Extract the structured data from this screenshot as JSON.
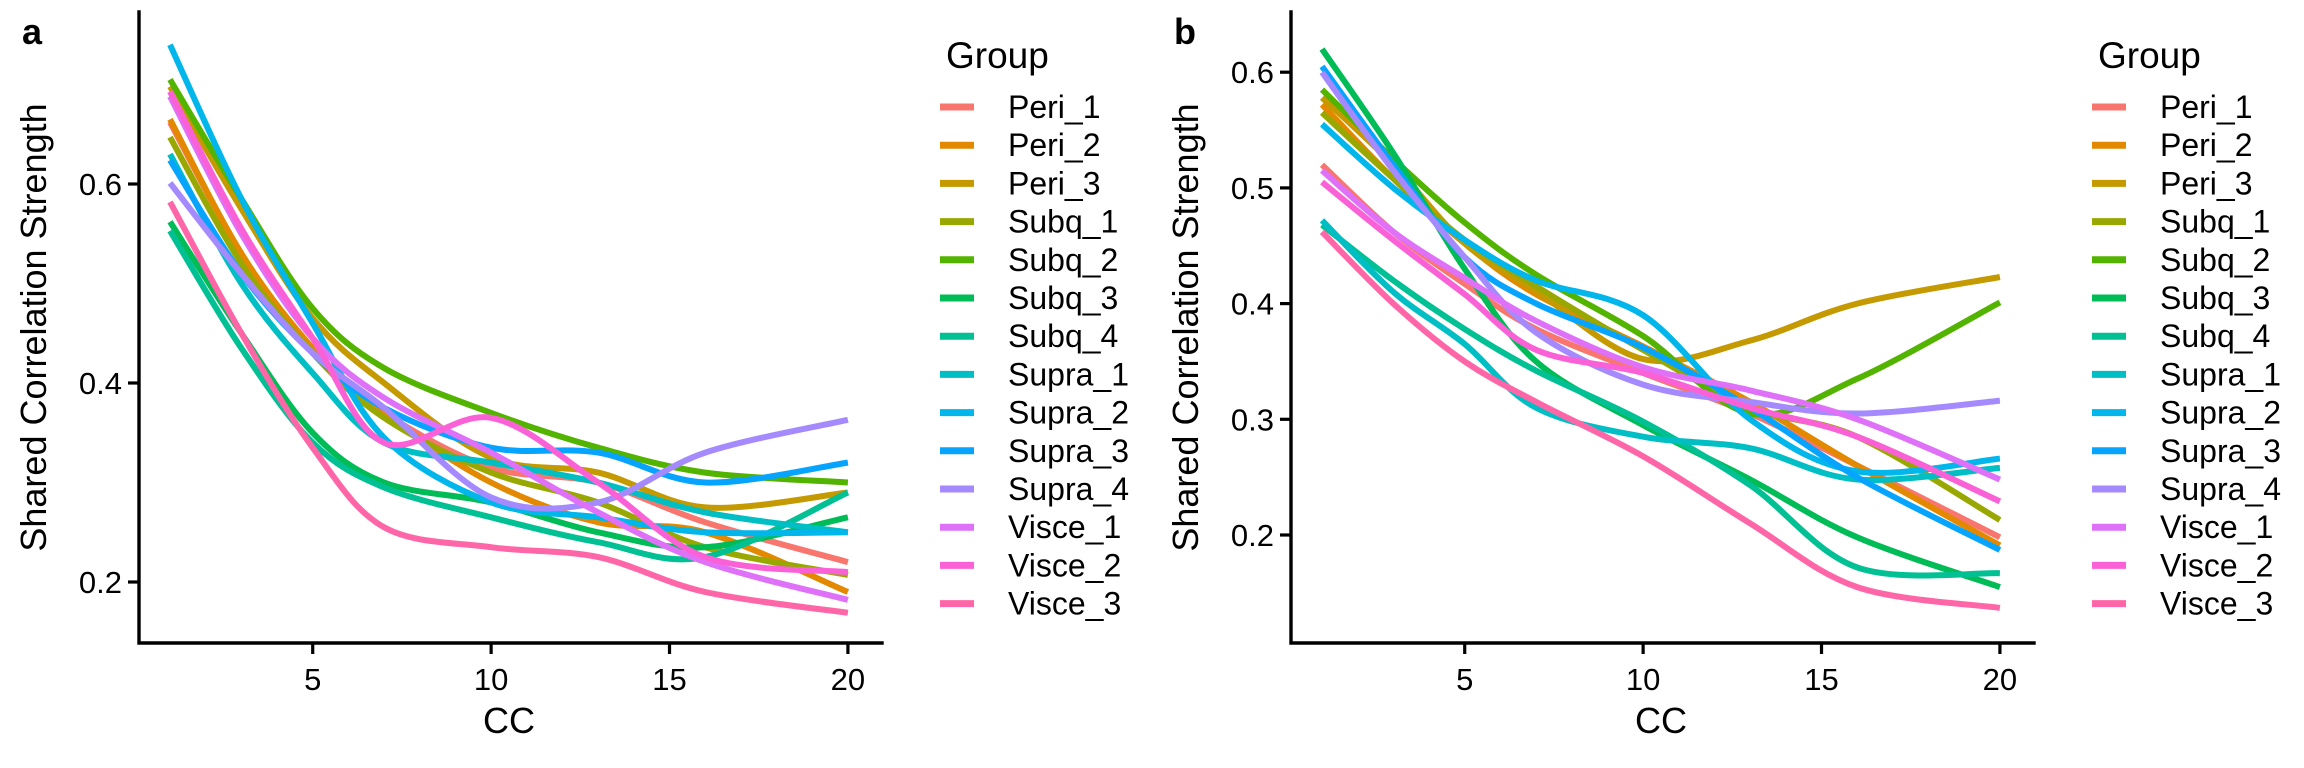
{
  "figure": {
    "background": "#ffffff",
    "text_color": "#000000",
    "axis_color": "#000000"
  },
  "chart_data": [
    {
      "panel_label": "a",
      "type": "line",
      "xlabel": "CC",
      "ylabel": "Shared Correlation Strength",
      "legend_title": "Group",
      "legend_position": "right",
      "grid": false,
      "x": [
        1,
        3,
        5,
        7,
        10,
        13,
        16,
        20
      ],
      "xlim": [
        1,
        20
      ],
      "ylim": [
        0.14,
        0.78
      ],
      "xticks": [
        5,
        10,
        15,
        20
      ],
      "xtick_labels": [
        "5",
        "10",
        "15",
        "20"
      ],
      "yticks": [
        0.2,
        0.4,
        0.6
      ],
      "ytick_labels": [
        "0.2",
        "0.4",
        "0.6"
      ],
      "series": [
        {
          "name": "Peri_1",
          "color": "#F8766D",
          "values": [
            0.662,
            0.53,
            0.43,
            0.37,
            0.315,
            0.3,
            0.26,
            0.22
          ]
        },
        {
          "name": "Peri_2",
          "color": "#E38900",
          "values": [
            0.665,
            0.53,
            0.435,
            0.37,
            0.3,
            0.26,
            0.25,
            0.19
          ]
        },
        {
          "name": "Peri_3",
          "color": "#C49A00",
          "values": [
            0.698,
            0.575,
            0.465,
            0.4,
            0.325,
            0.31,
            0.275,
            0.29
          ]
        },
        {
          "name": "Subq_1",
          "color": "#99A800",
          "values": [
            0.647,
            0.52,
            0.43,
            0.365,
            0.31,
            0.28,
            0.235,
            0.207
          ]
        },
        {
          "name": "Subq_2",
          "color": "#53B400",
          "values": [
            0.705,
            0.585,
            0.475,
            0.415,
            0.37,
            0.335,
            0.31,
            0.3
          ]
        },
        {
          "name": "Subq_3",
          "color": "#00BC56",
          "values": [
            0.562,
            0.45,
            0.35,
            0.3,
            0.28,
            0.25,
            0.235,
            0.265
          ]
        },
        {
          "name": "Subq_4",
          "color": "#00C094",
          "values": [
            0.553,
            0.435,
            0.34,
            0.295,
            0.265,
            0.24,
            0.225,
            0.29
          ]
        },
        {
          "name": "Supra_1",
          "color": "#00BFC4",
          "values": [
            0.63,
            0.5,
            0.41,
            0.34,
            0.32,
            0.3,
            0.27,
            0.25
          ]
        },
        {
          "name": "Supra_2",
          "color": "#00B6EB",
          "values": [
            0.74,
            0.585,
            0.46,
            0.345,
            0.28,
            0.265,
            0.25,
            0.25
          ]
        },
        {
          "name": "Supra_3",
          "color": "#06A4FF",
          "values": [
            0.624,
            0.51,
            0.43,
            0.375,
            0.335,
            0.33,
            0.3,
            0.32
          ]
        },
        {
          "name": "Supra_4",
          "color": "#A58AFF",
          "values": [
            0.601,
            0.51,
            0.43,
            0.375,
            0.285,
            0.28,
            0.33,
            0.363
          ]
        },
        {
          "name": "Visce_1",
          "color": "#DF70F8",
          "values": [
            0.688,
            0.55,
            0.445,
            0.385,
            0.33,
            0.27,
            0.22,
            0.182
          ]
        },
        {
          "name": "Visce_2",
          "color": "#FB61D7",
          "values": [
            0.693,
            0.555,
            0.445,
            0.34,
            0.365,
            0.3,
            0.225,
            0.21
          ]
        },
        {
          "name": "Visce_3",
          "color": "#FF66A8",
          "values": [
            0.582,
            0.45,
            0.335,
            0.255,
            0.235,
            0.225,
            0.19,
            0.169
          ]
        }
      ]
    },
    {
      "panel_label": "b",
      "type": "line",
      "xlabel": "CC",
      "ylabel": "Shared Correlation Strength",
      "legend_title": "Group",
      "legend_position": "right",
      "grid": false,
      "x": [
        1,
        3,
        5,
        7,
        10,
        13,
        16,
        20
      ],
      "xlim": [
        1,
        20
      ],
      "ylim": [
        0.11,
        0.66
      ],
      "xticks": [
        5,
        10,
        15,
        20
      ],
      "xtick_labels": [
        "5",
        "10",
        "15",
        "20"
      ],
      "yticks": [
        0.2,
        0.3,
        0.4,
        0.5,
        0.6
      ],
      "ytick_labels": [
        "0.2",
        "0.3",
        "0.4",
        "0.5",
        "0.6"
      ],
      "series": [
        {
          "name": "Peri_1",
          "color": "#F8766D",
          "values": [
            0.52,
            0.462,
            0.417,
            0.378,
            0.34,
            0.305,
            0.26,
            0.198
          ]
        },
        {
          "name": "Peri_2",
          "color": "#E38900",
          "values": [
            0.572,
            0.508,
            0.452,
            0.408,
            0.363,
            0.315,
            0.26,
            0.191
          ]
        },
        {
          "name": "Peri_3",
          "color": "#C49A00",
          "values": [
            0.578,
            0.52,
            0.452,
            0.411,
            0.352,
            0.368,
            0.4,
            0.423
          ]
        },
        {
          "name": "Subq_1",
          "color": "#99A800",
          "values": [
            0.565,
            0.508,
            0.455,
            0.415,
            0.36,
            0.31,
            0.285,
            0.213
          ]
        },
        {
          "name": "Subq_2",
          "color": "#53B400",
          "values": [
            0.585,
            0.525,
            0.47,
            0.425,
            0.372,
            0.305,
            0.335,
            0.401
          ]
        },
        {
          "name": "Subq_3",
          "color": "#00BC56",
          "values": [
            0.62,
            0.53,
            0.43,
            0.35,
            0.295,
            0.248,
            0.198,
            0.155
          ]
        },
        {
          "name": "Subq_4",
          "color": "#00C094",
          "values": [
            0.468,
            0.42,
            0.378,
            0.342,
            0.298,
            0.243,
            0.172,
            0.167
          ]
        },
        {
          "name": "Supra_1",
          "color": "#00BFC4",
          "values": [
            0.472,
            0.41,
            0.365,
            0.31,
            0.285,
            0.275,
            0.248,
            0.258
          ]
        },
        {
          "name": "Supra_2",
          "color": "#00B6EB",
          "values": [
            0.555,
            0.5,
            0.455,
            0.42,
            0.39,
            0.3,
            0.255,
            0.266
          ]
        },
        {
          "name": "Supra_3",
          "color": "#06A4FF",
          "values": [
            0.605,
            0.52,
            0.44,
            0.4,
            0.362,
            0.31,
            0.25,
            0.187
          ]
        },
        {
          "name": "Supra_4",
          "color": "#A58AFF",
          "values": [
            0.6,
            0.515,
            0.44,
            0.375,
            0.33,
            0.315,
            0.305,
            0.316
          ]
        },
        {
          "name": "Visce_1",
          "color": "#DF70F8",
          "values": [
            0.515,
            0.462,
            0.422,
            0.385,
            0.345,
            0.325,
            0.3,
            0.248
          ]
        },
        {
          "name": "Visce_2",
          "color": "#FB61D7",
          "values": [
            0.505,
            0.455,
            0.408,
            0.36,
            0.34,
            0.31,
            0.285,
            0.229
          ]
        },
        {
          "name": "Visce_3",
          "color": "#FF66A8",
          "values": [
            0.462,
            0.4,
            0.35,
            0.315,
            0.268,
            0.21,
            0.155,
            0.137
          ]
        }
      ]
    }
  ]
}
